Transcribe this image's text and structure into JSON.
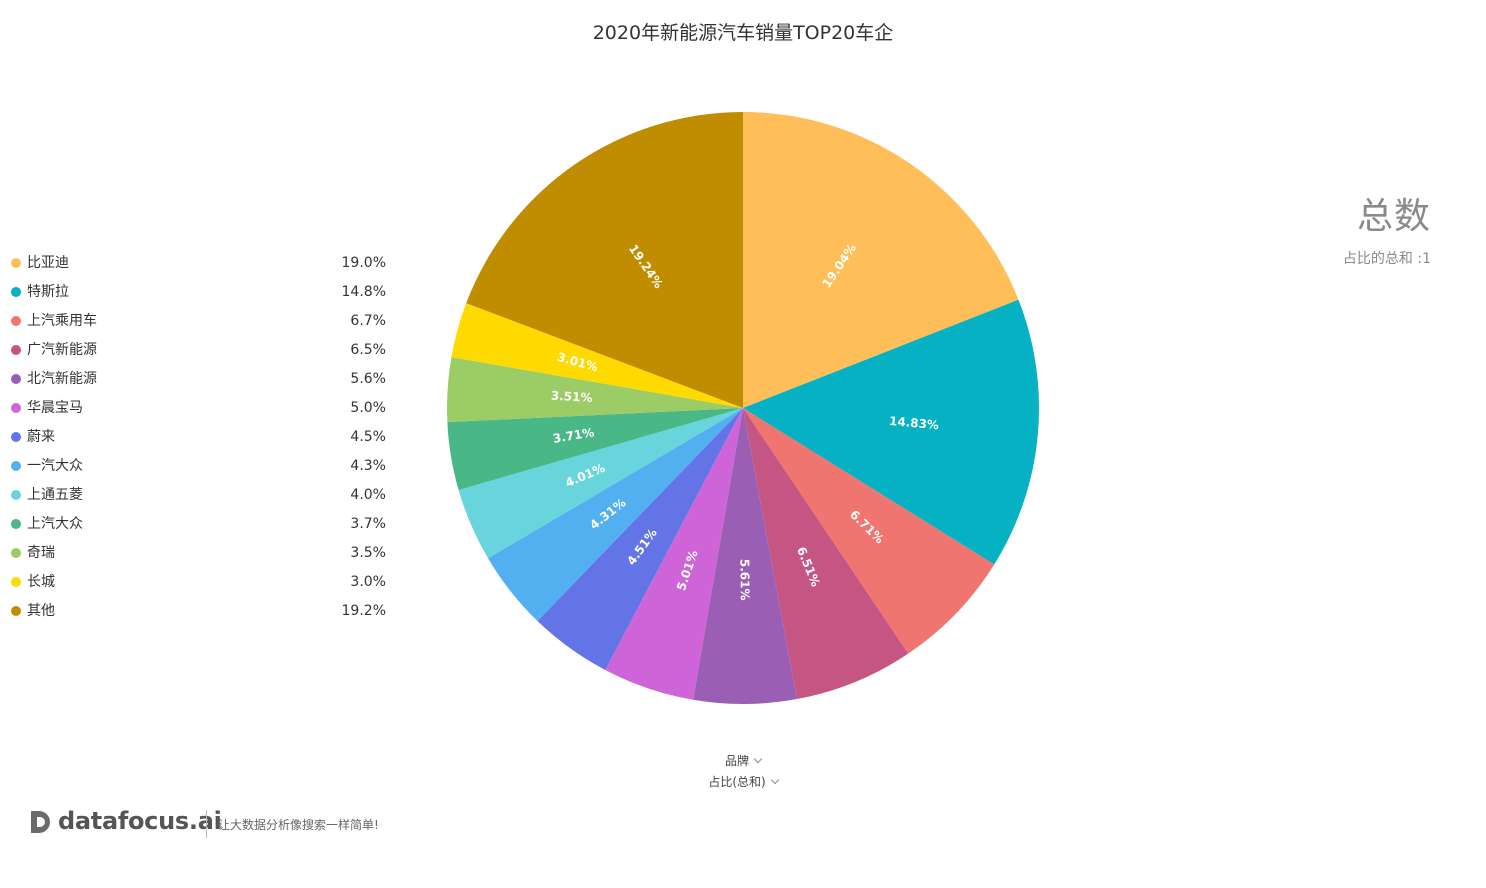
{
  "chart_data": {
    "type": "pie",
    "title": "2020年新能源汽车销量TOP20车企",
    "categories": [
      "比亚迪",
      "特斯拉",
      "上汽乘用车",
      "广汽新能源",
      "北汽新能源",
      "华晨宝马",
      "蔚来",
      "一汽大众",
      "上通五菱",
      "上汽大众",
      "奇瑞",
      "长城",
      "其他"
    ],
    "values": [
      19.04,
      14.83,
      6.71,
      6.51,
      5.61,
      5.01,
      4.51,
      4.31,
      4.01,
      3.71,
      3.51,
      3.01,
      19.24
    ],
    "legend_values": [
      "19.0%",
      "14.8%",
      "6.7%",
      "6.5%",
      "5.6%",
      "5.0%",
      "4.5%",
      "4.3%",
      "4.0%",
      "3.7%",
      "3.5%",
      "3.0%",
      "19.2%"
    ],
    "slice_labels": [
      "19.04%",
      "14.83%",
      "6.71%",
      "6.51%",
      "5.61%",
      "5.01%",
      "4.51%",
      "4.31%",
      "4.01%",
      "3.71%",
      "3.51%",
      "3.01%",
      "19.24%"
    ],
    "colors": [
      "#FFBE57",
      "#05B1C2",
      "#F07470",
      "#C55683",
      "#9A5FB5",
      "#CF64D8",
      "#6274E6",
      "#52AFF0",
      "#68D5DC",
      "#49B886",
      "#9CCC66",
      "#FFDA00",
      "#C08C00"
    ],
    "legend_position": "left"
  },
  "kpi": {
    "title": "总数",
    "subtitle": "占比的总和 :1"
  },
  "controls": {
    "dimension_label": "品牌",
    "measure_label": "占比(总和)"
  },
  "branding": {
    "name": "datafocus.ai",
    "slogan": "让大数据分析像搜索一样简单!"
  }
}
